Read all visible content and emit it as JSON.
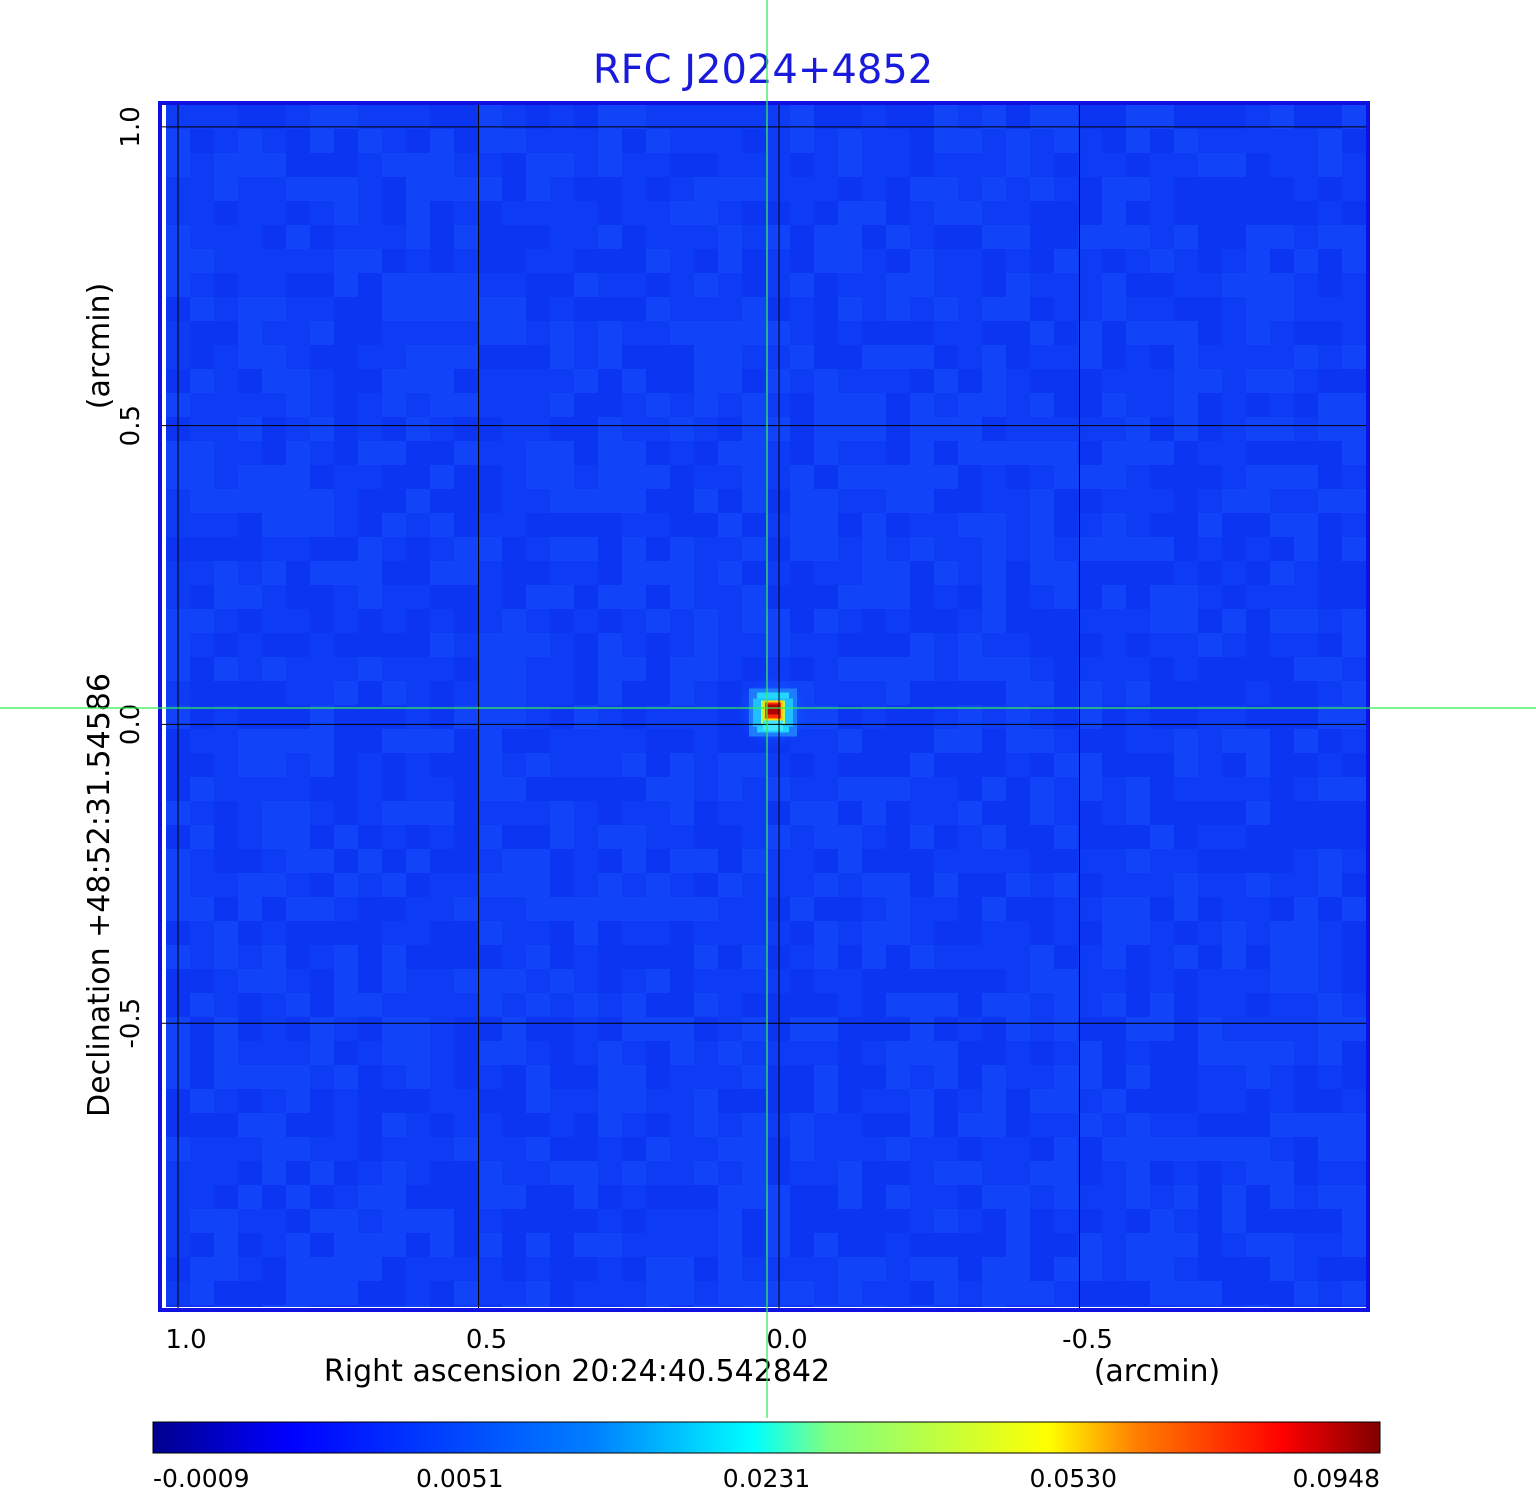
{
  "chart_data": {
    "type": "heatmap",
    "title": "RFC J2024+4852",
    "xlabel": "Right ascension  20:24:40.542842",
    "xunit": "(arcmin)",
    "ylabel": "Declination  +48:52:31.54586",
    "yunit": "(arcmin)",
    "x_ticks": [
      "1.0",
      "0.5",
      "0.0",
      "-0.5"
    ],
    "x_tick_values": [
      1.0,
      0.5,
      0.0,
      -0.5
    ],
    "y_ticks": [
      "1.0",
      "0.5",
      "0.0",
      "-0.5"
    ],
    "y_tick_values": [
      1.0,
      0.5,
      0.0,
      -0.5
    ],
    "xlim": [
      1.03,
      -0.98
    ],
    "ylim": [
      -0.98,
      1.04
    ],
    "grid": true,
    "crosshair": [
      0.02,
      0.03
    ],
    "colorbar": {
      "ticks": [
        "-0.0009",
        "0.0051",
        "0.0231",
        "0.0530",
        "0.0948"
      ],
      "min": -0.0009,
      "max": 0.0948
    },
    "source": {
      "x": 0.01,
      "y": 0.02,
      "peak": 0.0948
    },
    "background_level": 0.0001,
    "colors": {
      "frame": "#1010e0",
      "title": "#1a1adc",
      "crosshair": "#33ee55",
      "grid": "#000000",
      "colormap": [
        "#00008f",
        "#0000ff",
        "#0080ff",
        "#00ffff",
        "#80ff80",
        "#ffff00",
        "#ff8000",
        "#ff0000",
        "#800000"
      ]
    }
  }
}
